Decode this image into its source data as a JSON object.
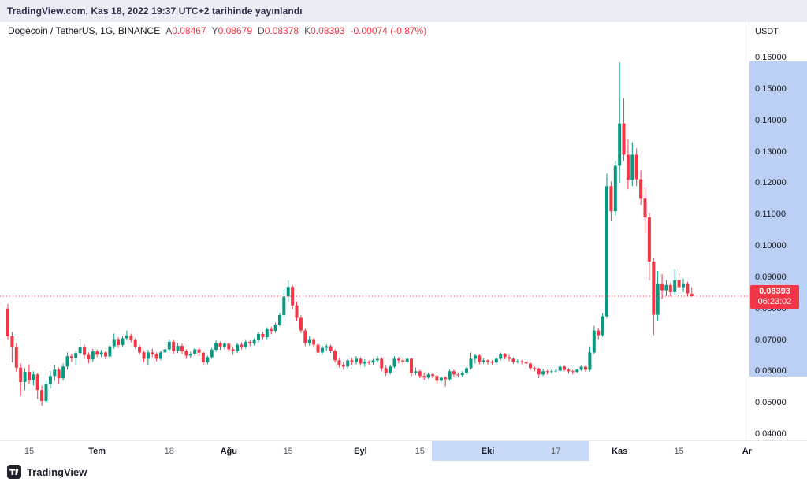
{
  "meta": {
    "publish_line": "TradingView.com, Kas 18, 2022 19:37 UTC+2 tarihinde yayınlandı"
  },
  "header": {
    "symbol": "Dogecoin / TetherUS, 1G, BINANCE",
    "ohlc": [
      {
        "label": "A",
        "value": "0.08467"
      },
      {
        "label": "Y",
        "value": "0.08679"
      },
      {
        "label": "D",
        "value": "0.08378"
      },
      {
        "label": "K",
        "value": "0.08393"
      }
    ],
    "change": "-0.00074 (-0.87%)"
  },
  "price_axis": {
    "currency": "USDT",
    "ticks": [
      "0.16000",
      "0.15000",
      "0.14000",
      "0.13000",
      "0.12000",
      "0.11000",
      "0.10000",
      "0.09000",
      "0.08000",
      "0.07000",
      "0.06000",
      "0.05000",
      "0.04000"
    ],
    "last_price_label": "0.08393",
    "countdown": "06:23:02"
  },
  "time_axis": {
    "ticks": [
      {
        "label": "15",
        "index": 5,
        "emph": false
      },
      {
        "label": "Tem",
        "index": 21,
        "emph": true
      },
      {
        "label": "18",
        "index": 38,
        "emph": false
      },
      {
        "label": "Ağu",
        "index": 52,
        "emph": true
      },
      {
        "label": "15",
        "index": 66,
        "emph": false
      },
      {
        "label": "Eyl",
        "index": 83,
        "emph": true
      },
      {
        "label": "15",
        "index": 97,
        "emph": false
      },
      {
        "label": "Eki",
        "index": 113,
        "emph": true
      },
      {
        "label": "17",
        "index": 129,
        "emph": false
      },
      {
        "label": "Kas",
        "index": 144,
        "emph": true
      },
      {
        "label": "15",
        "index": 158,
        "emph": false
      },
      {
        "label": "Ar",
        "index": 174,
        "emph": true
      }
    ]
  },
  "footer": {
    "brand": "TradingView"
  },
  "colors": {
    "up": "#089981",
    "down": "#f23645",
    "accent_red": "#f23645",
    "price_axis_highlight": "#bccff4",
    "time_axis_highlight": "#c9d9f8"
  },
  "chart_data": {
    "type": "candlestick",
    "title": "Dogecoin / TetherUS, 1G, BINANCE",
    "interval": "1D",
    "start_date": "2022-06-10",
    "price_range": [
      0.04,
      0.16
    ],
    "last_close": 0.08393,
    "ylabel": "USDT",
    "candles": [
      [
        0.08,
        0.0815,
        0.07,
        0.0712
      ],
      [
        0.0712,
        0.0725,
        0.0628,
        0.0678
      ],
      [
        0.0678,
        0.069,
        0.0598,
        0.0612
      ],
      [
        0.0612,
        0.0625,
        0.0521,
        0.0566
      ],
      [
        0.0566,
        0.061,
        0.054,
        0.0598
      ],
      [
        0.0598,
        0.0622,
        0.056,
        0.0572
      ],
      [
        0.0572,
        0.06,
        0.0555,
        0.059
      ],
      [
        0.059,
        0.0595,
        0.0512,
        0.054
      ],
      [
        0.054,
        0.0555,
        0.049,
        0.0505
      ],
      [
        0.0505,
        0.057,
        0.05,
        0.0558
      ],
      [
        0.0558,
        0.06,
        0.0545,
        0.0585
      ],
      [
        0.0585,
        0.062,
        0.057,
        0.0605
      ],
      [
        0.0605,
        0.0612,
        0.056,
        0.0578
      ],
      [
        0.0578,
        0.0625,
        0.057,
        0.0615
      ],
      [
        0.0615,
        0.066,
        0.0605,
        0.0648
      ],
      [
        0.0648,
        0.0655,
        0.063,
        0.0642
      ],
      [
        0.0642,
        0.0665,
        0.0618,
        0.0658
      ],
      [
        0.0658,
        0.07,
        0.065,
        0.0678
      ],
      [
        0.0678,
        0.0685,
        0.064,
        0.0652
      ],
      [
        0.0652,
        0.066,
        0.0625,
        0.0638
      ],
      [
        0.0638,
        0.0672,
        0.063,
        0.0663
      ],
      [
        0.0663,
        0.067,
        0.0645,
        0.0653
      ],
      [
        0.0653,
        0.0668,
        0.0645,
        0.066
      ],
      [
        0.066,
        0.0665,
        0.0638,
        0.0647
      ],
      [
        0.0647,
        0.0688,
        0.064,
        0.068
      ],
      [
        0.068,
        0.072,
        0.0672,
        0.07
      ],
      [
        0.07,
        0.0708,
        0.0675,
        0.0684
      ],
      [
        0.0684,
        0.0712,
        0.0678,
        0.0705
      ],
      [
        0.0705,
        0.073,
        0.0698,
        0.0714
      ],
      [
        0.0714,
        0.072,
        0.0692,
        0.0699
      ],
      [
        0.0699,
        0.0705,
        0.0672,
        0.0679
      ],
      [
        0.0679,
        0.0685,
        0.0652,
        0.066
      ],
      [
        0.066,
        0.0665,
        0.063,
        0.064
      ],
      [
        0.064,
        0.0668,
        0.0618,
        0.066
      ],
      [
        0.066,
        0.0672,
        0.0645,
        0.0654
      ],
      [
        0.0654,
        0.066,
        0.0632,
        0.064
      ],
      [
        0.064,
        0.0665,
        0.0635,
        0.066
      ],
      [
        0.066,
        0.0678,
        0.0652,
        0.067
      ],
      [
        0.067,
        0.07,
        0.0662,
        0.0694
      ],
      [
        0.0694,
        0.07,
        0.0655,
        0.0665
      ],
      [
        0.0665,
        0.069,
        0.0658,
        0.0681
      ],
      [
        0.0681,
        0.0688,
        0.0655,
        0.0664
      ],
      [
        0.0664,
        0.067,
        0.064,
        0.065
      ],
      [
        0.065,
        0.0662,
        0.0642,
        0.0656
      ],
      [
        0.0656,
        0.0675,
        0.065,
        0.067
      ],
      [
        0.067,
        0.0676,
        0.0648,
        0.0659
      ],
      [
        0.0659,
        0.0662,
        0.0618,
        0.0629
      ],
      [
        0.0629,
        0.065,
        0.0622,
        0.0645
      ],
      [
        0.0645,
        0.0675,
        0.064,
        0.0669
      ],
      [
        0.0669,
        0.0698,
        0.0662,
        0.069
      ],
      [
        0.069,
        0.0695,
        0.0668,
        0.0679
      ],
      [
        0.0679,
        0.0692,
        0.067,
        0.0688
      ],
      [
        0.0688,
        0.0692,
        0.0662,
        0.067
      ],
      [
        0.067,
        0.0678,
        0.0652,
        0.0664
      ],
      [
        0.0664,
        0.069,
        0.0658,
        0.0685
      ],
      [
        0.0685,
        0.0692,
        0.067,
        0.0679
      ],
      [
        0.0679,
        0.07,
        0.0672,
        0.0694
      ],
      [
        0.0694,
        0.0699,
        0.068,
        0.0689
      ],
      [
        0.0689,
        0.0705,
        0.0682,
        0.0699
      ],
      [
        0.0699,
        0.0725,
        0.0692,
        0.0719
      ],
      [
        0.0719,
        0.0726,
        0.07,
        0.0709
      ],
      [
        0.0709,
        0.074,
        0.07,
        0.0734
      ],
      [
        0.0734,
        0.0742,
        0.0718,
        0.0729
      ],
      [
        0.0729,
        0.0755,
        0.0722,
        0.0749
      ],
      [
        0.0749,
        0.0785,
        0.0744,
        0.0779
      ],
      [
        0.0779,
        0.0862,
        0.0772,
        0.0838
      ],
      [
        0.0838,
        0.089,
        0.082,
        0.0869
      ],
      [
        0.0869,
        0.0875,
        0.0798,
        0.081
      ],
      [
        0.081,
        0.0822,
        0.076,
        0.077
      ],
      [
        0.077,
        0.0778,
        0.0722,
        0.073
      ],
      [
        0.073,
        0.0736,
        0.068,
        0.069
      ],
      [
        0.069,
        0.0712,
        0.0682,
        0.07
      ],
      [
        0.07,
        0.0706,
        0.0678,
        0.0685
      ],
      [
        0.0685,
        0.069,
        0.0648,
        0.066
      ],
      [
        0.066,
        0.0682,
        0.0652,
        0.0675
      ],
      [
        0.0675,
        0.0686,
        0.0666,
        0.068
      ],
      [
        0.068,
        0.0685,
        0.0658,
        0.0665
      ],
      [
        0.0665,
        0.067,
        0.0628,
        0.0635
      ],
      [
        0.0635,
        0.0642,
        0.0612,
        0.062
      ],
      [
        0.062,
        0.063,
        0.0605,
        0.0615
      ],
      [
        0.0615,
        0.064,
        0.0608,
        0.0635
      ],
      [
        0.0635,
        0.0642,
        0.062,
        0.063
      ],
      [
        0.063,
        0.0648,
        0.0622,
        0.064
      ],
      [
        0.064,
        0.0645,
        0.0618,
        0.0625
      ],
      [
        0.0625,
        0.0638,
        0.0615,
        0.063
      ],
      [
        0.063,
        0.0635,
        0.062,
        0.0628
      ],
      [
        0.0628,
        0.064,
        0.062,
        0.0635
      ],
      [
        0.0635,
        0.0648,
        0.0628,
        0.064
      ],
      [
        0.064,
        0.0645,
        0.06,
        0.061
      ],
      [
        0.061,
        0.0618,
        0.0585,
        0.0595
      ],
      [
        0.0595,
        0.062,
        0.059,
        0.0615
      ],
      [
        0.0615,
        0.0648,
        0.061,
        0.064
      ],
      [
        0.064,
        0.0646,
        0.0625,
        0.0635
      ],
      [
        0.0635,
        0.0642,
        0.0622,
        0.063
      ],
      [
        0.063,
        0.0645,
        0.0624,
        0.064
      ],
      [
        0.064,
        0.0644,
        0.0585,
        0.0595
      ],
      [
        0.0595,
        0.0612,
        0.0588,
        0.06
      ],
      [
        0.06,
        0.0605,
        0.0578,
        0.0585
      ],
      [
        0.0585,
        0.0595,
        0.0572,
        0.058
      ],
      [
        0.058,
        0.0596,
        0.0576,
        0.059
      ],
      [
        0.059,
        0.0594,
        0.0578,
        0.0585
      ],
      [
        0.0585,
        0.0588,
        0.0558,
        0.057
      ],
      [
        0.057,
        0.0585,
        0.0562,
        0.058
      ],
      [
        0.058,
        0.0585,
        0.0552,
        0.0575
      ],
      [
        0.0575,
        0.0605,
        0.057,
        0.06
      ],
      [
        0.06,
        0.0606,
        0.0582,
        0.059
      ],
      [
        0.059,
        0.0596,
        0.058,
        0.0588
      ],
      [
        0.0588,
        0.06,
        0.0582,
        0.0595
      ],
      [
        0.0595,
        0.0615,
        0.059,
        0.061
      ],
      [
        0.061,
        0.066,
        0.0605,
        0.064
      ],
      [
        0.064,
        0.0655,
        0.0625,
        0.065
      ],
      [
        0.065,
        0.0654,
        0.0622,
        0.063
      ],
      [
        0.063,
        0.0642,
        0.0624,
        0.0635
      ],
      [
        0.0635,
        0.0638,
        0.0622,
        0.063
      ],
      [
        0.063,
        0.0635,
        0.062,
        0.0628
      ],
      [
        0.0628,
        0.0645,
        0.0622,
        0.064
      ],
      [
        0.064,
        0.066,
        0.0635,
        0.0655
      ],
      [
        0.0655,
        0.0658,
        0.0638,
        0.0645
      ],
      [
        0.0645,
        0.0652,
        0.0632,
        0.064
      ],
      [
        0.064,
        0.0644,
        0.0624,
        0.063
      ],
      [
        0.063,
        0.0638,
        0.0625,
        0.0632
      ],
      [
        0.0632,
        0.0636,
        0.0622,
        0.063
      ],
      [
        0.063,
        0.0634,
        0.0618,
        0.0625
      ],
      [
        0.0625,
        0.0628,
        0.0602,
        0.061
      ],
      [
        0.061,
        0.0615,
        0.06,
        0.0608
      ],
      [
        0.0608,
        0.0612,
        0.0578,
        0.059
      ],
      [
        0.059,
        0.0608,
        0.0585,
        0.06
      ],
      [
        0.06,
        0.0604,
        0.059,
        0.0598
      ],
      [
        0.0598,
        0.0606,
        0.0592,
        0.06
      ],
      [
        0.06,
        0.0607,
        0.0594,
        0.0602
      ],
      [
        0.0602,
        0.062,
        0.0598,
        0.0615
      ],
      [
        0.0615,
        0.0618,
        0.06,
        0.0605
      ],
      [
        0.0605,
        0.061,
        0.0592,
        0.06
      ],
      [
        0.06,
        0.0604,
        0.059,
        0.0598
      ],
      [
        0.0598,
        0.0608,
        0.0594,
        0.0605
      ],
      [
        0.0605,
        0.0618,
        0.06,
        0.0615
      ],
      [
        0.0615,
        0.0618,
        0.0598,
        0.0605
      ],
      [
        0.0605,
        0.068,
        0.06,
        0.066
      ],
      [
        0.066,
        0.0745,
        0.0655,
        0.073
      ],
      [
        0.073,
        0.0738,
        0.07,
        0.0715
      ],
      [
        0.0715,
        0.0785,
        0.071,
        0.0775
      ],
      [
        0.0775,
        0.123,
        0.077,
        0.119
      ],
      [
        0.119,
        0.1205,
        0.108,
        0.111
      ],
      [
        0.111,
        0.127,
        0.1095,
        0.1255
      ],
      [
        0.1255,
        0.1585,
        0.12,
        0.139
      ],
      [
        0.139,
        0.147,
        0.127,
        0.129
      ],
      [
        0.129,
        0.134,
        0.118,
        0.121
      ],
      [
        0.121,
        0.133,
        0.119,
        0.129
      ],
      [
        0.129,
        0.131,
        0.119,
        0.1212
      ],
      [
        0.1212,
        0.124,
        0.113,
        0.115
      ],
      [
        0.115,
        0.1185,
        0.104,
        0.109
      ],
      [
        0.109,
        0.1105,
        0.089,
        0.095
      ],
      [
        0.095,
        0.096,
        0.0715,
        0.078
      ],
      [
        0.078,
        0.092,
        0.076,
        0.088
      ],
      [
        0.088,
        0.091,
        0.083,
        0.0858
      ],
      [
        0.0858,
        0.089,
        0.084,
        0.0875
      ],
      [
        0.0875,
        0.0882,
        0.0838,
        0.0852
      ],
      [
        0.0852,
        0.0925,
        0.0845,
        0.089
      ],
      [
        0.089,
        0.0912,
        0.0855,
        0.0868
      ],
      [
        0.0868,
        0.0895,
        0.0852,
        0.088
      ],
      [
        0.088,
        0.0885,
        0.0838,
        0.0848
      ],
      [
        0.08467,
        0.08679,
        0.08378,
        0.08393
      ]
    ]
  }
}
